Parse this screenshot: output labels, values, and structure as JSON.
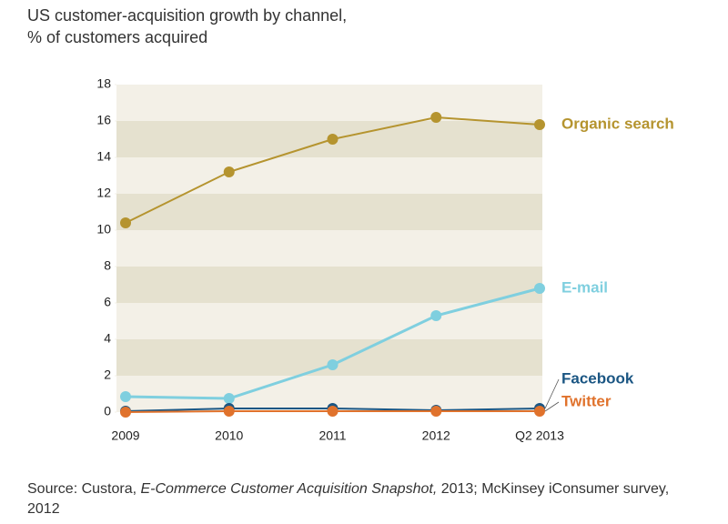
{
  "chart_data": {
    "type": "line",
    "title": "US customer-acquisition growth by channel,",
    "subtitle": "% of customers acquired",
    "categories": [
      "2009",
      "2010",
      "2011",
      "2012",
      "Q2 2013"
    ],
    "series": [
      {
        "name": "Organic search",
        "color": "#b5942f",
        "values": [
          10.4,
          13.2,
          15.0,
          16.2,
          15.8
        ]
      },
      {
        "name": "E-mail",
        "color": "#7fcfdf",
        "values": [
          0.85,
          0.75,
          2.6,
          5.3,
          6.8
        ]
      },
      {
        "name": "Facebook",
        "color": "#1b5683",
        "values": [
          0.05,
          0.2,
          0.2,
          0.1,
          0.2
        ]
      },
      {
        "name": "Twitter",
        "color": "#e0722c",
        "values": [
          0,
          0.05,
          0.05,
          0.05,
          0.05
        ]
      }
    ],
    "ylim": [
      0,
      18
    ],
    "yticks": [
      0,
      2,
      4,
      6,
      8,
      10,
      12,
      14,
      16,
      18
    ],
    "bands": true,
    "source": [
      "Source: Custora, ",
      "E-Commerce Customer Acquisition Snapshot,",
      " 2013; McKinsey iConsumer survey, 2012"
    ]
  }
}
